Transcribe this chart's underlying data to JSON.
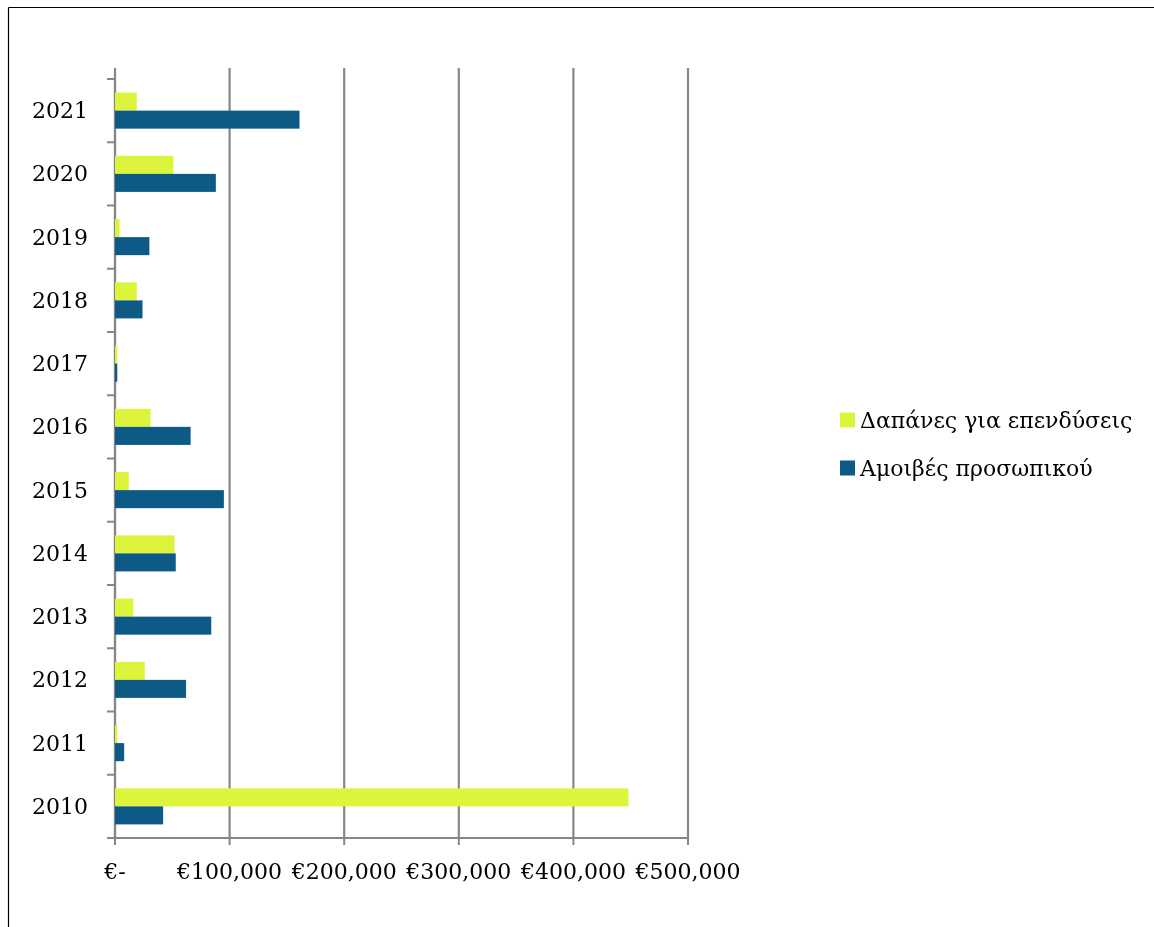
{
  "chart_data": {
    "type": "bar",
    "orientation": "horizontal",
    "categories": [
      "2021",
      "2020",
      "2019",
      "2018",
      "2017",
      "2016",
      "2015",
      "2014",
      "2013",
      "2012",
      "2011",
      "2010"
    ],
    "series": [
      {
        "name": "Δαπάνες για επενδύσεις",
        "color": "#dcf43c",
        "values": [
          19000,
          51000,
          4000,
          19000,
          2000,
          31000,
          12000,
          52000,
          16000,
          26000,
          2000,
          448000
        ]
      },
      {
        "name": "Αμοιβές προσωπικού",
        "color": "#0e5a87",
        "values": [
          161000,
          88000,
          30000,
          24000,
          2000,
          66000,
          95000,
          53000,
          84000,
          62000,
          8000,
          42000
        ]
      }
    ],
    "xlim": [
      0,
      500000
    ],
    "xticks": [
      {
        "value": 0,
        "label": "€-"
      },
      {
        "value": 100000,
        "label": "€100,000"
      },
      {
        "value": 200000,
        "label": "€200,000"
      },
      {
        "value": 300000,
        "label": "€300,000"
      },
      {
        "value": 400000,
        "label": "€400,000"
      },
      {
        "value": 500000,
        "label": "€500,000"
      }
    ],
    "grid": "x",
    "legend": "right"
  }
}
